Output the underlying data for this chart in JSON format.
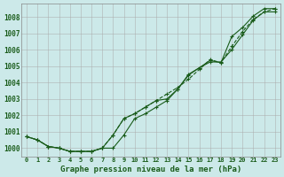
{
  "title": "Graphe pression niveau de la mer (hPa)",
  "bg_color": "#cce9e9",
  "grid_color": "#aaaaaa",
  "line_color": "#1a5c1a",
  "x_labels": [
    "0",
    "1",
    "2",
    "3",
    "4",
    "5",
    "6",
    "7",
    "8",
    "9",
    "10",
    "11",
    "12",
    "13",
    "14",
    "15",
    "16",
    "17",
    "18",
    "19",
    "20",
    "21",
    "22",
    "23"
  ],
  "ylim_low": 999.5,
  "ylim_high": 1008.8,
  "yticks": [
    1000,
    1001,
    1002,
    1003,
    1004,
    1005,
    1006,
    1007,
    1008
  ],
  "line1": [
    1000.7,
    1000.5,
    1000.1,
    1000.0,
    999.8,
    999.8,
    999.8,
    1000.0,
    1000.0,
    1000.8,
    1001.8,
    1002.1,
    1002.5,
    1002.9,
    1003.6,
    1004.45,
    1004.9,
    1005.25,
    1005.25,
    1006.0,
    1006.9,
    1007.8,
    1008.3,
    1008.3
  ],
  "line2": [
    1000.7,
    1000.5,
    1000.1,
    1000.0,
    999.8,
    999.8,
    999.8,
    1000.0,
    1000.8,
    1001.8,
    1002.1,
    1002.5,
    1002.9,
    1003.3,
    1003.7,
    1004.2,
    1004.8,
    1005.4,
    1005.2,
    1006.2,
    1007.1,
    1007.85,
    1008.3,
    1008.5
  ],
  "line3": [
    1000.7,
    1000.5,
    1000.1,
    1000.0,
    999.8,
    999.8,
    999.8,
    1000.0,
    1000.8,
    1001.8,
    1002.1,
    1002.5,
    1002.9,
    1003.0,
    1003.6,
    1004.5,
    1004.9,
    1005.35,
    1005.2,
    1006.8,
    1007.35,
    1008.05,
    1008.5,
    1008.5
  ]
}
